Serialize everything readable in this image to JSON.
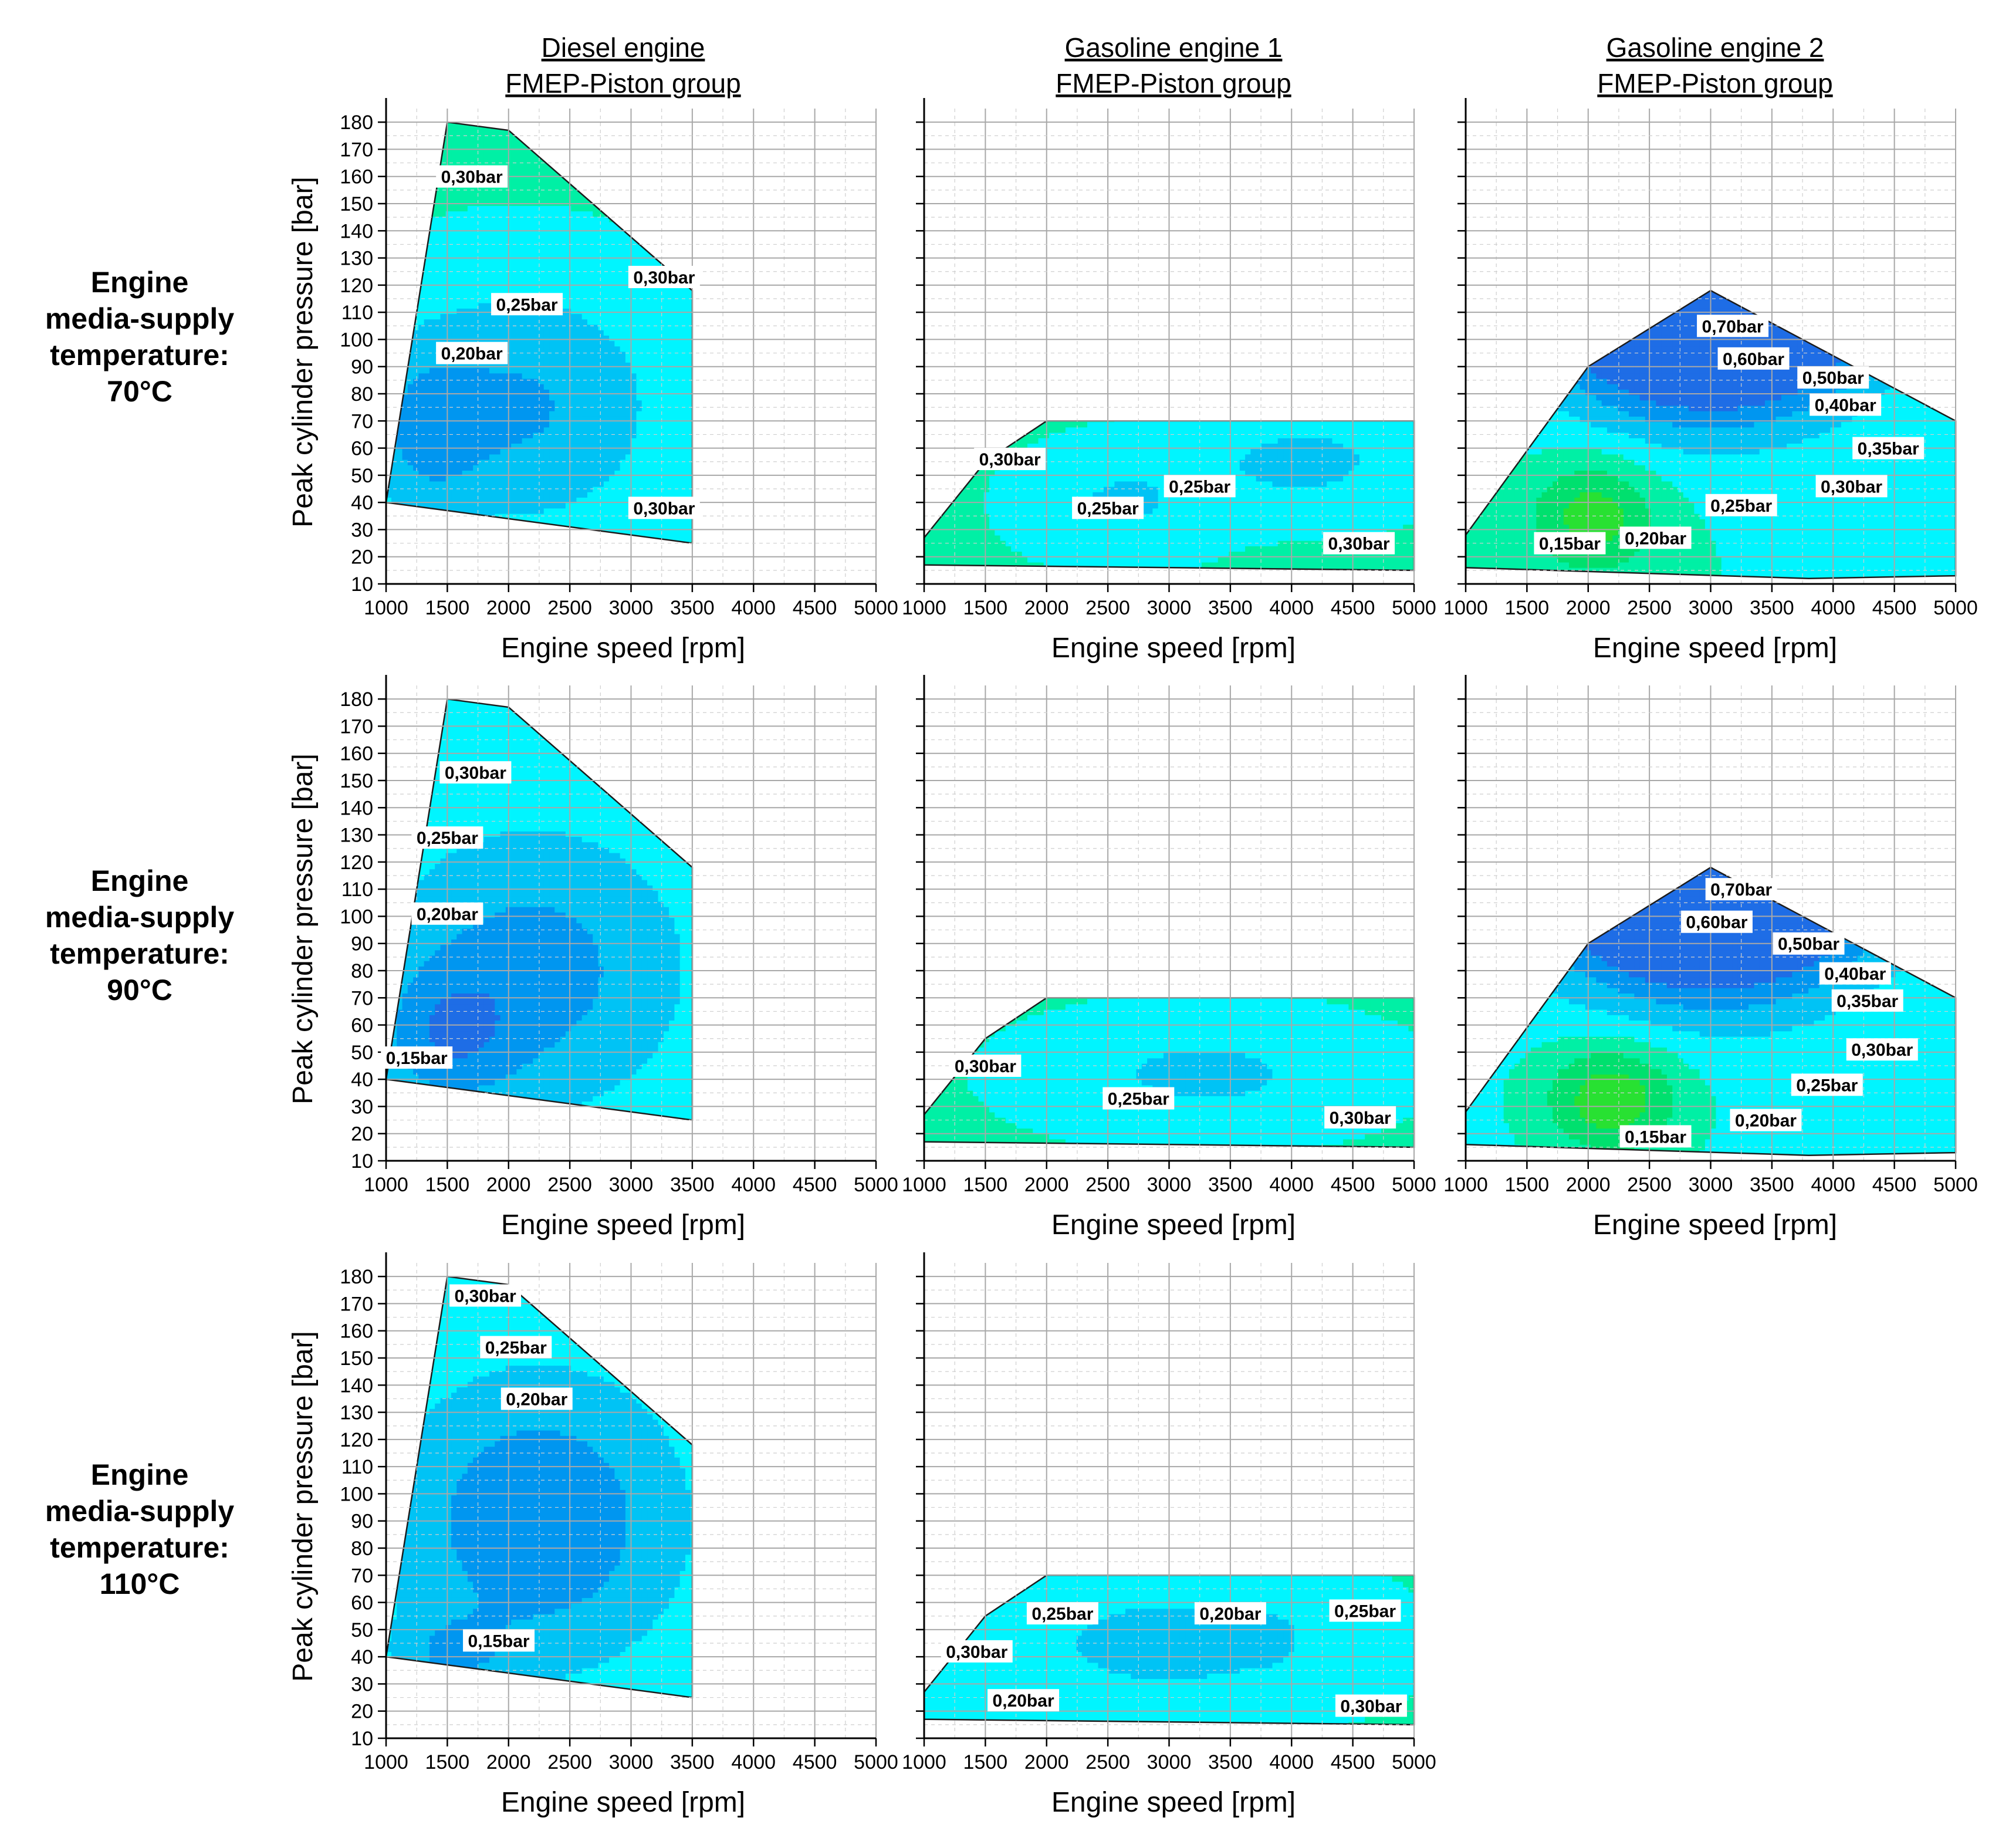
{
  "chart_data": {
    "type": "contour",
    "column_titles": [
      {
        "line1": "Diesel engine",
        "line2": "FMEP-Piston group"
      },
      {
        "line1": "Gasoline engine 1",
        "line2": "FMEP-Piston group"
      },
      {
        "line1": "Gasoline engine 2",
        "line2": "FMEP-Piston group"
      }
    ],
    "row_labels": [
      [
        "Engine",
        "media-supply",
        "temperature:",
        "70°C"
      ],
      [
        "Engine",
        "media-supply",
        "temperature:",
        "90°C"
      ],
      [
        "Engine",
        "media-supply",
        "temperature:",
        "110°C"
      ]
    ],
    "xlabel": "Engine speed [rpm]",
    "ylabel": "Peak cylinder pressure [bar]",
    "xlim": [
      1000,
      5000
    ],
    "ylim": [
      10,
      185
    ],
    "xticks": [
      "1000",
      "1500",
      "2000",
      "2500",
      "3000",
      "3500",
      "4000",
      "4500",
      "5000"
    ],
    "yticks": [
      "10",
      "20",
      "30",
      "40",
      "50",
      "60",
      "70",
      "80",
      "90",
      "100",
      "110",
      "120",
      "130",
      "140",
      "150",
      "160",
      "170",
      "180"
    ],
    "levels": [
      {
        "value": 0.1,
        "color": "#1e6de6"
      },
      {
        "value": 0.15,
        "color": "#0096f0"
      },
      {
        "value": 0.2,
        "color": "#00c3f5"
      },
      {
        "value": 0.25,
        "color": "#00f5ff"
      },
      {
        "value": 0.3,
        "color": "#00f0a5"
      },
      {
        "value": 0.35,
        "color": "#00e06e"
      },
      {
        "value": 0.4,
        "color": "#28e132"
      },
      {
        "value": 0.45,
        "color": "#8cf000"
      },
      {
        "value": 0.5,
        "color": "#fafa00"
      },
      {
        "value": 0.55,
        "color": "#ffdc00"
      },
      {
        "value": 0.6,
        "color": "#ffb400"
      },
      {
        "value": 0.65,
        "color": "#ff7800"
      },
      {
        "value": 0.7,
        "color": "#ff3200"
      },
      {
        "value": 0.75,
        "color": "#e60000"
      }
    ],
    "panels": [
      {
        "id": "diesel-70",
        "row": 0,
        "col": 0,
        "hull": [
          [
            1000,
            40
          ],
          [
            1500,
            180
          ],
          [
            2000,
            177
          ],
          [
            3500,
            118
          ],
          [
            3500,
            25
          ],
          [
            1000,
            40
          ]
        ],
        "field": [
          {
            "speed": 2100,
            "pressure": 75,
            "amp": 0.115,
            "sx": 1200,
            "sy": 48
          },
          {
            "speed": 1300,
            "pressure": 65,
            "amp": 0.07,
            "sx": 450,
            "sy": 30
          }
        ],
        "base": 0.31,
        "labels": [
          {
            "text": "0,30bar",
            "speed": 1700,
            "pressure": 160
          },
          {
            "text": "0,30bar",
            "speed": 3270,
            "pressure": 123
          },
          {
            "text": "0,25bar",
            "speed": 2150,
            "pressure": 113
          },
          {
            "text": "0,20bar",
            "speed": 1700,
            "pressure": 95
          },
          {
            "text": "0,30bar",
            "speed": 3270,
            "pressure": 38
          }
        ]
      },
      {
        "id": "gas1-70",
        "row": 0,
        "col": 1,
        "hull": [
          [
            1000,
            27
          ],
          [
            1500,
            55
          ],
          [
            2000,
            70
          ],
          [
            5000,
            70
          ],
          [
            5000,
            15
          ],
          [
            1000,
            17
          ],
          [
            1000,
            27
          ]
        ],
        "field": [
          {
            "speed": 2600,
            "pressure": 40,
            "amp": 0.06,
            "sx": 700,
            "sy": 18
          },
          {
            "speed": 4100,
            "pressure": 55,
            "amp": 0.07,
            "sx": 900,
            "sy": 18
          }
        ],
        "base": 0.305,
        "labels": [
          {
            "text": "0,30bar",
            "speed": 1700,
            "pressure": 56
          },
          {
            "text": "0,25bar",
            "speed": 2500,
            "pressure": 38
          },
          {
            "text": "0,25bar",
            "speed": 3250,
            "pressure": 46
          },
          {
            "text": "0,30bar",
            "speed": 4550,
            "pressure": 25
          }
        ]
      },
      {
        "id": "gas2-70",
        "row": 0,
        "col": 2,
        "hull": [
          [
            1000,
            28
          ],
          [
            2000,
            90
          ],
          [
            3000,
            118
          ],
          [
            5000,
            70
          ],
          [
            5000,
            13
          ],
          [
            3800,
            12
          ],
          [
            1000,
            16
          ],
          [
            1000,
            28
          ]
        ],
        "field": [
          {
            "speed": 3000,
            "pressure": 118,
            "amp": 0.5,
            "sx": 1200,
            "sy": 40
          },
          {
            "speed": 2050,
            "pressure": 35,
            "amp": -0.13,
            "sx": 500,
            "sy": 20
          }
        ],
        "base": 0.3,
        "labels": [
          {
            "text": "0,70bar",
            "speed": 3180,
            "pressure": 105
          },
          {
            "text": "0,60bar",
            "speed": 3350,
            "pressure": 93
          },
          {
            "text": "0,50bar",
            "speed": 4000,
            "pressure": 86
          },
          {
            "text": "0,40bar",
            "speed": 4100,
            "pressure": 76
          },
          {
            "text": "0,35bar",
            "speed": 4450,
            "pressure": 60
          },
          {
            "text": "0,30bar",
            "speed": 4150,
            "pressure": 46
          },
          {
            "text": "0,25bar",
            "speed": 3250,
            "pressure": 39
          },
          {
            "text": "0,20bar",
            "speed": 2550,
            "pressure": 27
          },
          {
            "text": "0,15bar",
            "speed": 1850,
            "pressure": 25
          }
        ]
      },
      {
        "id": "diesel-90",
        "row": 1,
        "col": 0,
        "hull": [
          [
            1000,
            40
          ],
          [
            1500,
            180
          ],
          [
            2000,
            177
          ],
          [
            3500,
            118
          ],
          [
            3500,
            25
          ],
          [
            1000,
            40
          ]
        ],
        "field": [
          {
            "speed": 2200,
            "pressure": 80,
            "amp": 0.12,
            "sx": 1300,
            "sy": 55
          },
          {
            "speed": 1500,
            "pressure": 55,
            "amp": 0.09,
            "sx": 550,
            "sy": 25
          }
        ],
        "base": 0.3,
        "labels": [
          {
            "text": "0,30bar",
            "speed": 1730,
            "pressure": 153
          },
          {
            "text": "0,25bar",
            "speed": 1500,
            "pressure": 129
          },
          {
            "text": "0,20bar",
            "speed": 1500,
            "pressure": 101
          },
          {
            "text": "0,15bar",
            "speed": 1250,
            "pressure": 48
          }
        ]
      },
      {
        "id": "gas1-90",
        "row": 1,
        "col": 1,
        "hull": [
          [
            1000,
            27
          ],
          [
            1500,
            55
          ],
          [
            2000,
            70
          ],
          [
            5000,
            70
          ],
          [
            5000,
            15
          ],
          [
            1000,
            17
          ],
          [
            1000,
            27
          ]
        ],
        "field": [
          {
            "speed": 3300,
            "pressure": 42,
            "amp": 0.07,
            "sx": 1400,
            "sy": 22
          }
        ],
        "base": 0.31,
        "labels": [
          {
            "text": "0,30bar",
            "speed": 1500,
            "pressure": 45
          },
          {
            "text": "0,25bar",
            "speed": 2750,
            "pressure": 33
          },
          {
            "text": "0,30bar",
            "speed": 4560,
            "pressure": 26
          }
        ]
      },
      {
        "id": "gas2-90",
        "row": 1,
        "col": 2,
        "hull": [
          [
            1000,
            28
          ],
          [
            2000,
            90
          ],
          [
            3000,
            118
          ],
          [
            5000,
            70
          ],
          [
            5000,
            13
          ],
          [
            3800,
            12
          ],
          [
            1000,
            16
          ],
          [
            1000,
            28
          ]
        ],
        "field": [
          {
            "speed": 3000,
            "pressure": 118,
            "amp": 0.5,
            "sx": 1200,
            "sy": 40
          },
          {
            "speed": 2200,
            "pressure": 33,
            "amp": -0.15,
            "sx": 550,
            "sy": 20
          }
        ],
        "base": 0.29,
        "labels": [
          {
            "text": "0,70bar",
            "speed": 3250,
            "pressure": 110
          },
          {
            "text": "0,60bar",
            "speed": 3050,
            "pressure": 98
          },
          {
            "text": "0,50bar",
            "speed": 3800,
            "pressure": 90
          },
          {
            "text": "0,40bar",
            "speed": 4180,
            "pressure": 79
          },
          {
            "text": "0,35bar",
            "speed": 4280,
            "pressure": 69
          },
          {
            "text": "0,30bar",
            "speed": 4400,
            "pressure": 51
          },
          {
            "text": "0,25bar",
            "speed": 3950,
            "pressure": 38
          },
          {
            "text": "0,20bar",
            "speed": 3450,
            "pressure": 25
          },
          {
            "text": "0,15bar",
            "speed": 2550,
            "pressure": 19
          }
        ]
      },
      {
        "id": "diesel-110",
        "row": 2,
        "col": 0,
        "hull": [
          [
            1000,
            40
          ],
          [
            1500,
            180
          ],
          [
            2000,
            177
          ],
          [
            3500,
            118
          ],
          [
            3500,
            25
          ],
          [
            1000,
            40
          ]
        ],
        "field": [
          {
            "speed": 2250,
            "pressure": 90,
            "amp": 0.15,
            "sx": 1300,
            "sy": 60
          },
          {
            "speed": 1500,
            "pressure": 40,
            "amp": 0.07,
            "sx": 500,
            "sy": 15
          }
        ],
        "base": 0.31,
        "labels": [
          {
            "text": "0,30bar",
            "speed": 1810,
            "pressure": 173
          },
          {
            "text": "0,25bar",
            "speed": 2060,
            "pressure": 154
          },
          {
            "text": "0,20bar",
            "speed": 2230,
            "pressure": 135
          },
          {
            "text": "0,15bar",
            "speed": 1920,
            "pressure": 46
          }
        ]
      },
      {
        "id": "gas1-110",
        "row": 2,
        "col": 1,
        "hull": [
          [
            1000,
            27
          ],
          [
            1500,
            55
          ],
          [
            2000,
            70
          ],
          [
            5000,
            70
          ],
          [
            5000,
            15
          ],
          [
            1000,
            17
          ],
          [
            1000,
            27
          ]
        ],
        "field": [
          {
            "speed": 3000,
            "pressure": 45,
            "amp": 0.075,
            "sx": 1600,
            "sy": 28
          },
          {
            "speed": 3750,
            "pressure": 47,
            "amp": 0.04,
            "sx": 250,
            "sy": 8
          },
          {
            "speed": 1500,
            "pressure": 16,
            "amp": 0.04,
            "sx": 400,
            "sy": 6
          }
        ],
        "base": 0.31,
        "labels": [
          {
            "text": "0,25bar",
            "speed": 2130,
            "pressure": 56
          },
          {
            "text": "0,20bar",
            "speed": 3500,
            "pressure": 56
          },
          {
            "text": "0,25bar",
            "speed": 4600,
            "pressure": 57
          },
          {
            "text": "0,30bar",
            "speed": 1430,
            "pressure": 42
          },
          {
            "text": "0,20bar",
            "speed": 1810,
            "pressure": 24
          },
          {
            "text": "0,30bar",
            "speed": 4650,
            "pressure": 22
          }
        ]
      }
    ]
  }
}
